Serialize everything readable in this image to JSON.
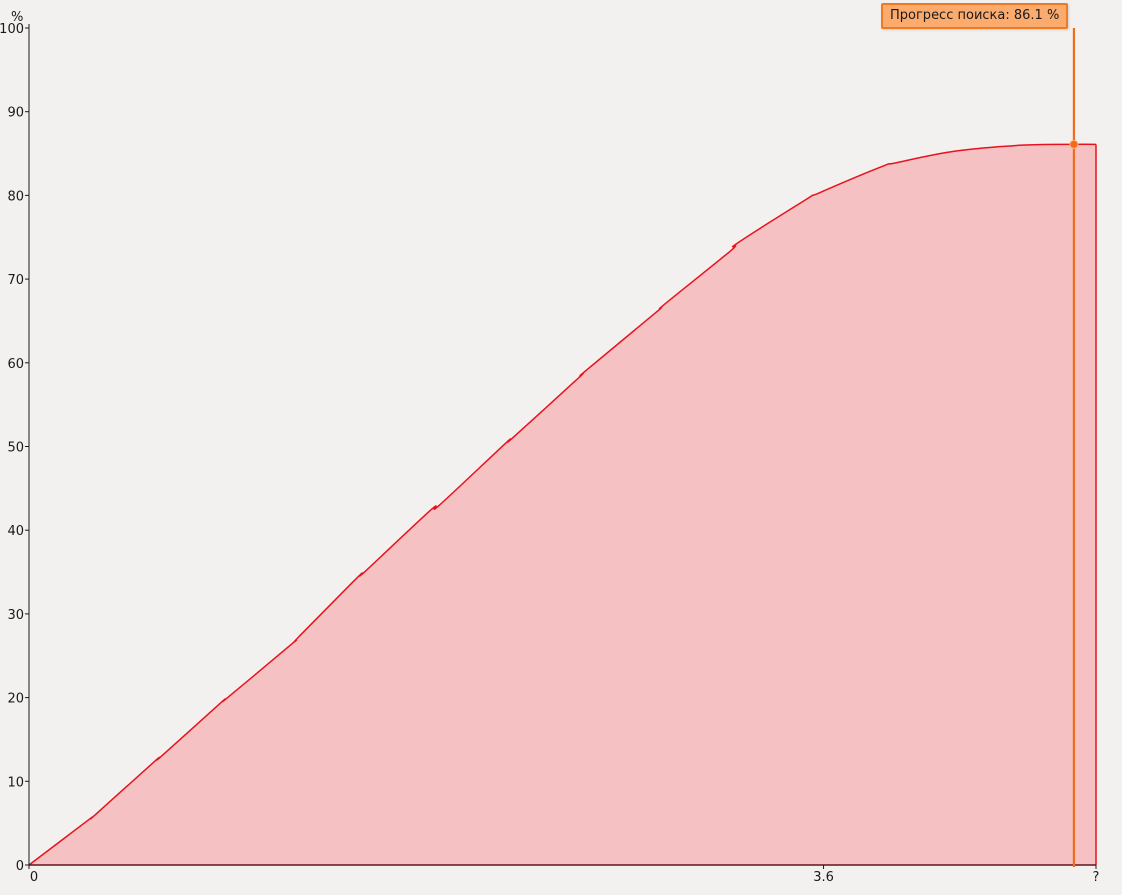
{
  "chart_data": {
    "type": "area",
    "ylabel": "%",
    "ylim": [
      0,
      100
    ],
    "y_ticks": [
      "0",
      "10",
      "20",
      "30",
      "40",
      "50",
      "60",
      "70",
      "80",
      "90",
      "100"
    ],
    "x_ticks": [
      "0",
      "3.6",
      "?"
    ],
    "x_tick_values": [
      0,
      3.6,
      4.8345
    ],
    "xlim": [
      0,
      4.8345
    ],
    "grid": false,
    "legend": "none",
    "series": [
      {
        "x": [
          0,
          0.27,
          0.3,
          0.57,
          0.6,
          0.87,
          0.9,
          1.19,
          1.22,
          1.49,
          1.52,
          1.82,
          1.86,
          2.16,
          2.19,
          2.49,
          2.52,
          2.84,
          2.88,
          3.18,
          3.21,
          3.52,
          3.58,
          3.86,
          3.93,
          4.2,
          4.5,
          4.74,
          4.8345
        ],
        "y": [
          0,
          5.4,
          6.0,
          12.4,
          13.0,
          19.4,
          20.0,
          26.4,
          27.2,
          34.4,
          35.0,
          42.4,
          43.0,
          50.4,
          51.0,
          58.2,
          59.0,
          66.0,
          67.0,
          73.4,
          74.3,
          79.5,
          80.3,
          83.4,
          83.9,
          85.3,
          86.0,
          86.1,
          86.1
        ],
        "color": "#e8121e",
        "fill": "#f5c1c2"
      }
    ],
    "cursor": {
      "x": 4.7345,
      "y": 86.1,
      "color": "#f26a1b",
      "label": "Прогресс поиска: 86.1 %"
    }
  }
}
